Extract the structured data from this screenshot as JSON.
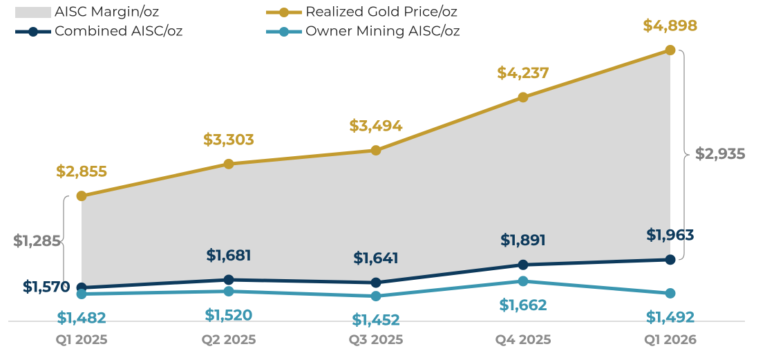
{
  "chart_data": {
    "type": "line",
    "categories": [
      "Q1 2025",
      "Q2 2025",
      "Q3 2025",
      "Q4 2025",
      "Q1 2026"
    ],
    "series": [
      {
        "name": "AISC Margin/oz",
        "type": "area",
        "stacked_on": "Combined AISC/oz",
        "color": "#d9d9d9",
        "label_color": "#7f7f7f",
        "values": [
          1285,
          1622,
          1853,
          2346,
          2935
        ],
        "value_labels": [
          "$1,285",
          null,
          null,
          null,
          "$2,935"
        ]
      },
      {
        "name": "Realized Gold Price/oz",
        "color": "#c39b2f",
        "values": [
          2855,
          3303,
          3494,
          4237,
          4898
        ],
        "value_labels": [
          "$2,855",
          "$3,303",
          "$3,494",
          "$4,237",
          "$4,898"
        ]
      },
      {
        "name": "Combined AISC/oz",
        "color": "#0d3a5c",
        "values": [
          1570,
          1681,
          1641,
          1891,
          1963
        ],
        "value_labels": [
          "$1,570",
          "$1,681",
          "$1,641",
          "$1,891",
          "$1,963"
        ]
      },
      {
        "name": "Owner Mining AISC/oz",
        "color": "#3a96b0",
        "values": [
          1482,
          1520,
          1452,
          1662,
          1492
        ],
        "value_labels": [
          "$1,482",
          "$1,520",
          "$1,452",
          "$1,662",
          "$1,492"
        ]
      }
    ],
    "ylim": [
      1100,
      5600
    ],
    "grid": false
  }
}
